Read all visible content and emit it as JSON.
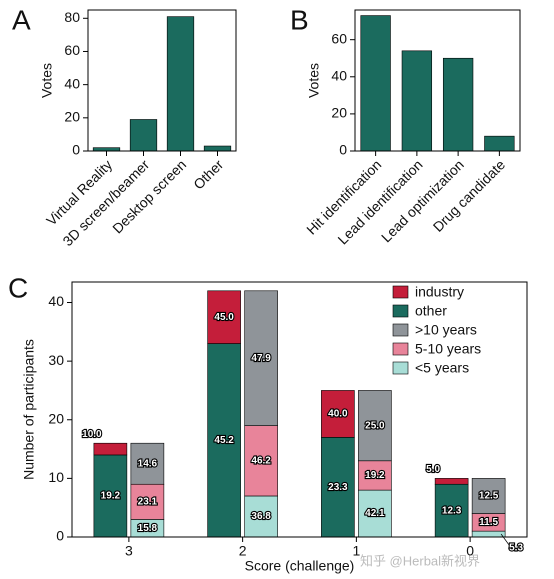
{
  "chart_data": [
    {
      "type": "bar",
      "panel_label": "A",
      "ylabel": "Votes",
      "categories": [
        "Virtual Reality",
        "3D screen/beamer",
        "Desktop screen",
        "Other"
      ],
      "values": [
        2,
        19,
        81,
        3
      ],
      "color": "#1b6b5e",
      "ylim": [
        0,
        85
      ],
      "yticks": [
        0,
        20,
        40,
        60,
        80
      ]
    },
    {
      "type": "bar",
      "panel_label": "B",
      "ylabel": "Votes",
      "categories": [
        "Hit identification",
        "Lead identification",
        "Lead optimization",
        "Drug candidate"
      ],
      "values": [
        73,
        54,
        50,
        8
      ],
      "color": "#1b6b5e",
      "ylim": [
        0,
        76
      ],
      "yticks": [
        0,
        20,
        40,
        60
      ]
    },
    {
      "type": "stacked_bar",
      "panel_label": "C",
      "xlabel": "Score (challenge)",
      "ylabel": "Number of participants",
      "categories": [
        "3",
        "2",
        "1",
        "0"
      ],
      "ylim": [
        0,
        43.5
      ],
      "yticks": [
        0,
        10,
        20,
        30,
        40
      ],
      "legend": "upper right",
      "stacks": [
        [
          {
            "name": "other",
            "color": "#1b6b5e",
            "values": [
              14,
              33,
              17,
              9
            ],
            "value_labels": [
              "19.2",
              "45.2",
              "23.3",
              "12.3"
            ]
          },
          {
            "name": "industry",
            "color": "#c41e3a",
            "values": [
              2,
              9,
              8,
              1
            ],
            "value_labels": [
              "10.0",
              "45.0",
              "40.0",
              "5.0"
            ]
          }
        ],
        [
          {
            "name": "<5 years",
            "color": "#a8ddd6",
            "values": [
              3,
              7,
              8,
              1
            ],
            "value_labels": [
              "15.8",
              "36.8",
              "42.1",
              "5.3"
            ]
          },
          {
            "name": "5-10 years",
            "color": "#e8849a",
            "values": [
              6,
              12,
              5,
              3
            ],
            "value_labels": [
              "23.1",
              "46.2",
              "19.2",
              "11.5"
            ]
          },
          {
            "name": ">10 years",
            "color": "#8f9499",
            "values": [
              7,
              23,
              12,
              6
            ],
            "value_labels": [
              "14.6",
              "47.9",
              "25.0",
              "12.5"
            ]
          }
        ]
      ]
    }
  ],
  "watermark": "知乎 @Herbal新视界"
}
